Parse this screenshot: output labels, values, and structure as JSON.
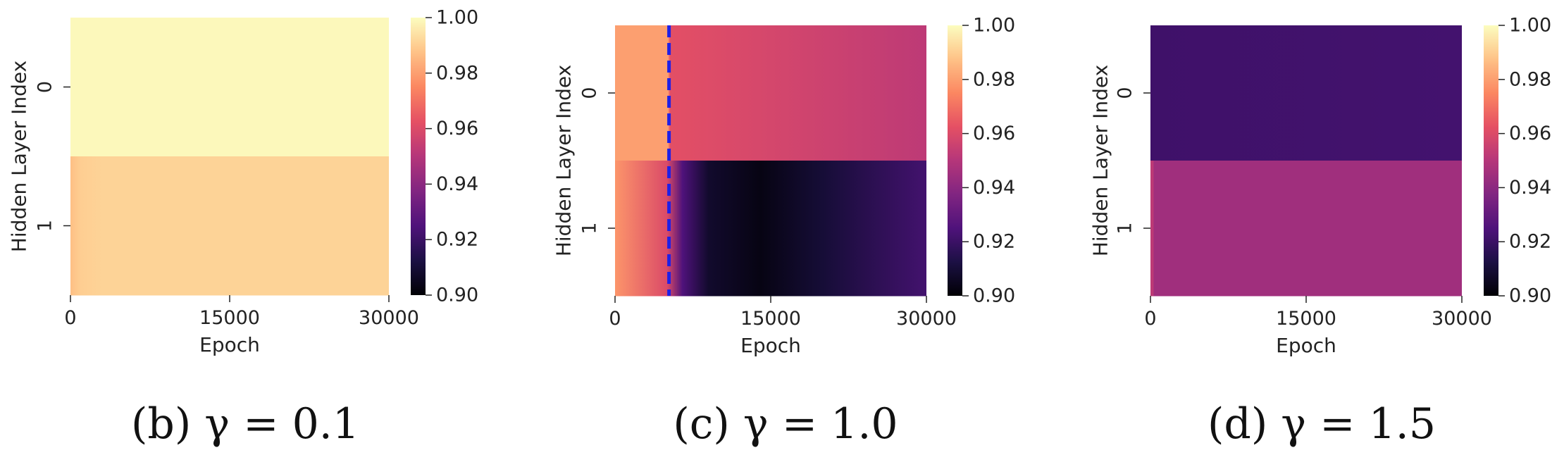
{
  "chart_data": [
    {
      "type": "heatmap",
      "caption": "(b) γ = 0.1",
      "xlabel": "Epoch",
      "ylabel": "Hidden Layer Index",
      "x_ticks": [
        0,
        15000,
        30000
      ],
      "x_tick_labels": [
        "0",
        "15000",
        "30000"
      ],
      "y_tick_labels": [
        "0",
        "1"
      ],
      "xlim": [
        0,
        30000
      ],
      "colormap": "magma",
      "clim": [
        0.9,
        1.0
      ],
      "colorbar_ticks": [
        "0.90",
        "0.92",
        "0.94",
        "0.96",
        "0.98",
        "1.00"
      ],
      "rows": [
        {
          "index": "0",
          "profile": [
            [
              0,
              0.999
            ],
            [
              30000,
              0.999
            ]
          ]
        },
        {
          "index": "1",
          "profile": [
            [
              0,
              0.987
            ],
            [
              1000,
              0.99
            ],
            [
              3000,
              0.991
            ],
            [
              30000,
              0.991
            ]
          ]
        }
      ],
      "annotations": []
    },
    {
      "type": "heatmap",
      "caption": "(c) γ = 1.0",
      "xlabel": "Epoch",
      "ylabel": "Hidden Layer Index",
      "x_ticks": [
        0,
        15000,
        30000
      ],
      "x_tick_labels": [
        "0",
        "15000",
        "30000"
      ],
      "y_tick_labels": [
        "0",
        "1"
      ],
      "xlim": [
        0,
        30000
      ],
      "colormap": "magma",
      "clim": [
        0.9,
        1.0
      ],
      "colorbar_ticks": [
        "0.90",
        "0.92",
        "0.94",
        "0.96",
        "0.98",
        "1.00"
      ],
      "rows": [
        {
          "index": "0",
          "profile": [
            [
              0,
              0.98
            ],
            [
              5100,
              0.98
            ],
            [
              5300,
              0.962
            ],
            [
              15000,
              0.958
            ],
            [
              30000,
              0.952
            ]
          ]
        },
        {
          "index": "1",
          "profile": [
            [
              0,
              0.978
            ],
            [
              5000,
              0.96
            ],
            [
              6500,
              0.925
            ],
            [
              9000,
              0.908
            ],
            [
              14000,
              0.903
            ],
            [
              20000,
              0.91
            ],
            [
              30000,
              0.922
            ]
          ]
        }
      ],
      "annotations": [
        {
          "type": "vline",
          "x": 5200,
          "style": "dashed",
          "color": "#1f1fe6"
        }
      ]
    },
    {
      "type": "heatmap",
      "caption": "(d) γ = 1.5",
      "xlabel": "Epoch",
      "ylabel": "Hidden Layer Index",
      "x_ticks": [
        0,
        15000,
        30000
      ],
      "x_tick_labels": [
        "0",
        "15000",
        "30000"
      ],
      "y_tick_labels": [
        "0",
        "1"
      ],
      "xlim": [
        0,
        30000
      ],
      "colormap": "magma",
      "clim": [
        0.9,
        1.0
      ],
      "colorbar_ticks": [
        "0.90",
        "0.92",
        "0.94",
        "0.96",
        "0.98",
        "1.00"
      ],
      "rows": [
        {
          "index": "0",
          "profile": [
            [
              0,
              0.921
            ],
            [
              30000,
              0.922
            ]
          ]
        },
        {
          "index": "1",
          "profile": [
            [
              0,
              0.952
            ],
            [
              250,
              0.952
            ],
            [
              350,
              0.945
            ],
            [
              30000,
              0.945
            ]
          ]
        }
      ],
      "annotations": []
    }
  ]
}
